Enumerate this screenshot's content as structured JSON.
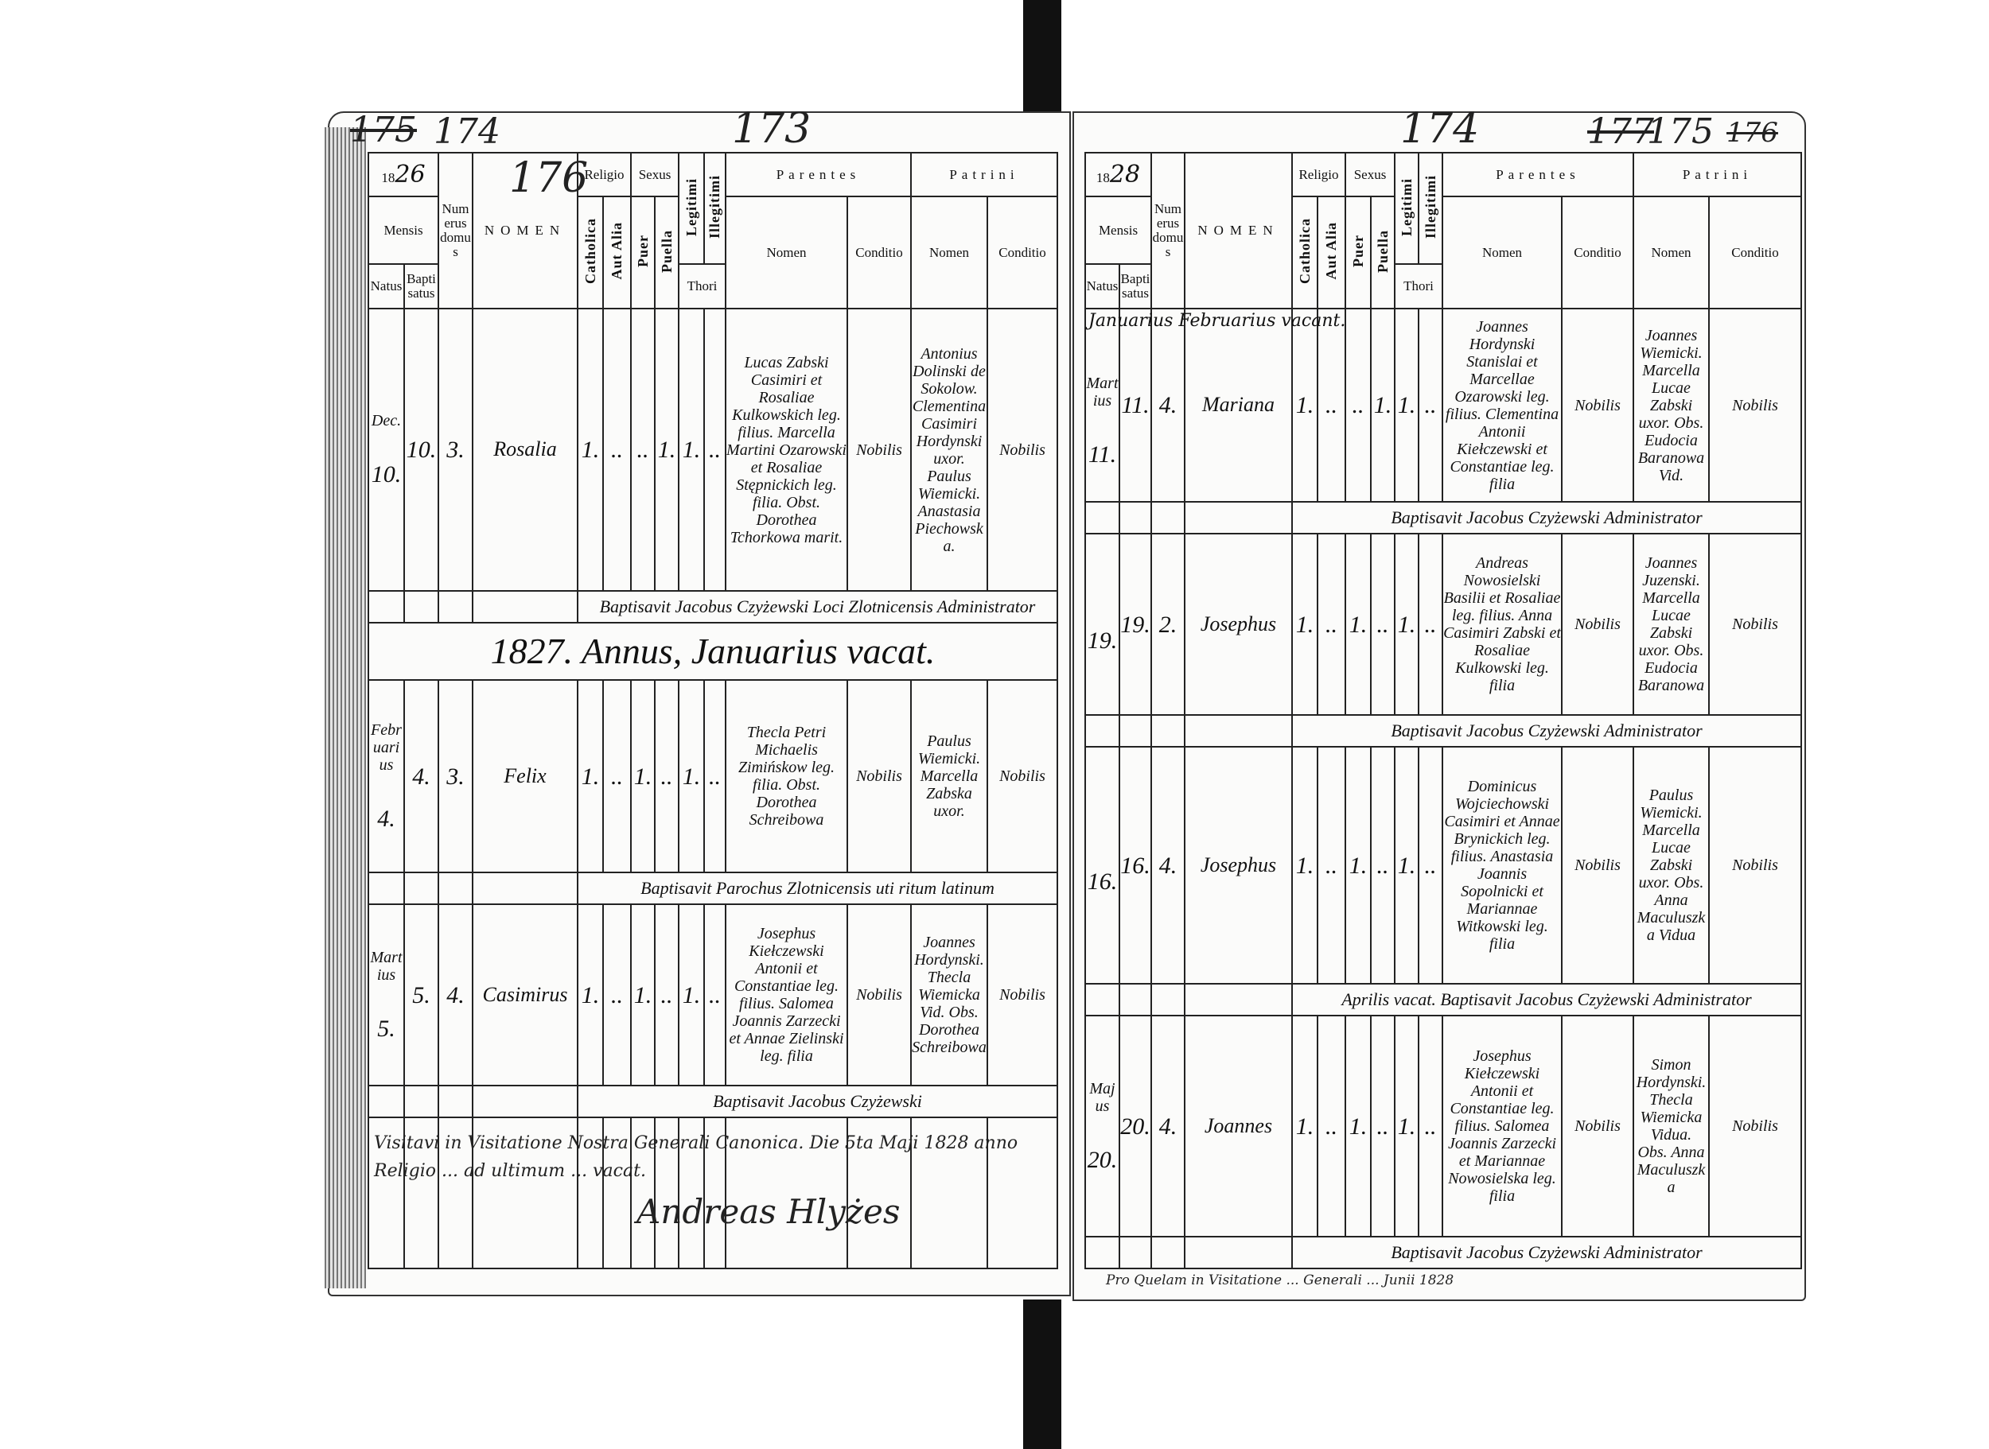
{
  "header": {
    "mensis": "Mensis",
    "natus": "Natus",
    "baptisatus": "Baptisatus",
    "numerus_domus": "Numerus domus",
    "nomen": "NOMEN",
    "religio": "Religio",
    "catholica": "Catholica",
    "aut_alia": "Aut Alia",
    "sexus": "Sexus",
    "puer": "Puer",
    "puella": "Puella",
    "legitimi": "Legitimi",
    "illegitimi": "Illegitimi",
    "thori": "Thori",
    "parentes": "Parentes",
    "patrini": "Patrini",
    "col_nomen": "Nomen",
    "col_conditio": "Conditio"
  },
  "left_page": {
    "page_numbers": [
      "175",
      "174",
      "173",
      "176"
    ],
    "year_prefix": "18",
    "year_suffix": "26",
    "entries": [
      {
        "type": "entry",
        "month": "Dec.",
        "natus": "10.",
        "baptisatus": "10.",
        "domus": "3.",
        "nomen": "Rosalia",
        "catholica": "1.",
        "aut_alia": "..",
        "puer": "..",
        "puella": "1.",
        "legitimi": "1.",
        "illegitimi": "..",
        "parentes_nomen": "Lucas Zabski Casimiri et Rosaliae Kulkowskich leg. filius. Marcella Martini Ozarowski et Rosaliae Stępnickich leg. filia. Obst. Dorothea Tchorkowa marit.",
        "parentes_conditio": "Nobilis",
        "patrini_nomen": "Antonius Dolinski de Sokolow. Clementina Casimiri Hordynski uxor. Paulus Wiemicki. Anastasia Piechowska.",
        "patrini_conditio": "Nobilis",
        "baptizavit": "Baptisavit Jacobus Czyżewski Loci Zlotnicensis Administrator"
      },
      {
        "type": "year",
        "text": "1827. Annus, Januarius vacat."
      },
      {
        "type": "entry",
        "month": "Februarius",
        "natus": "4.",
        "baptisatus": "4.",
        "domus": "3.",
        "nomen": "Felix",
        "catholica": "1.",
        "aut_alia": "..",
        "puer": "1.",
        "puella": "..",
        "legitimi": "1.",
        "illegitimi": "..",
        "parentes_nomen": "Thecla Petri Michaelis Zimińskow leg. filia. Obst. Dorothea Schreibowa",
        "parentes_conditio": "Nobilis",
        "patrini_nomen": "Paulus Wiemicki. Marcella Zabska uxor.",
        "patrini_conditio": "Nobilis",
        "baptizavit": "Baptisavit Parochus Zlotnicensis uti ritum latinum"
      },
      {
        "type": "entry",
        "month": "Martius",
        "natus": "5.",
        "baptisatus": "5.",
        "domus": "4.",
        "nomen": "Casimirus",
        "catholica": "1.",
        "aut_alia": "..",
        "puer": "1.",
        "puella": "..",
        "legitimi": "1.",
        "illegitimi": "..",
        "parentes_nomen": "Josephus Kiełczewski Antonii et Constantiae leg. filius. Salomea Joannis Zarzecki et Annae Zielinski leg. filia",
        "parentes_conditio": "Nobilis",
        "patrini_nomen": "Joannes Hordynski. Thecla Wiemicka Vid. Obs. Dorothea Schreibowa",
        "patrini_conditio": "Nobilis",
        "baptizavit": "Baptisavit Jacobus Czyżewski"
      }
    ],
    "notes": [
      "Visitavi in Visitatione Nostra Generali Canonica. Die 5ta Maji 1828 anno",
      "Religio ... ad ultimum ... vacat."
    ],
    "signature": "Andreas Hlyżes"
  },
  "right_page": {
    "page_numbers": [
      "174",
      "177",
      "175",
      "176"
    ],
    "year_prefix": "18",
    "year_suffix": "28",
    "vacat_note": "Januarius Februarius vacant.",
    "entries": [
      {
        "type": "entry",
        "month": "Martius",
        "natus": "11.",
        "baptisatus": "11.",
        "domus": "4.",
        "nomen": "Mariana",
        "catholica": "1.",
        "aut_alia": "..",
        "puer": "..",
        "puella": "1.",
        "legitimi": "1.",
        "illegitimi": "..",
        "parentes_nomen": "Joannes Hordynski Stanislai et Marcellae Ozarowski leg. filius. Clementina Antonii Kiełczewski et Constantiae leg. filia",
        "parentes_conditio": "Nobilis",
        "patrini_nomen": "Joannes Wiemicki. Marcella Lucae Zabski uxor. Obs. Eudocia Baranowa Vid.",
        "patrini_conditio": "Nobilis",
        "baptizavit": "Baptisavit Jacobus Czyżewski Administrator"
      },
      {
        "type": "entry",
        "month": "",
        "natus": "19.",
        "baptisatus": "19.",
        "domus": "2.",
        "nomen": "Josephus",
        "catholica": "1.",
        "aut_alia": "..",
        "puer": "1.",
        "puella": "..",
        "legitimi": "1.",
        "illegitimi": "..",
        "parentes_nomen": "Andreas Nowosielski Basilii et Rosaliae leg. filius. Anna Casimiri Zabski et Rosaliae Kulkowski leg. filia",
        "parentes_conditio": "Nobilis",
        "patrini_nomen": "Joannes Juzenski. Marcella Lucae Zabski uxor. Obs. Eudocia Baranowa",
        "patrini_conditio": "Nobilis",
        "baptizavit": "Baptisavit Jacobus Czyżewski Administrator"
      },
      {
        "type": "entry",
        "month": "",
        "natus": "16.",
        "baptisatus": "16.",
        "domus": "4.",
        "nomen": "Josephus",
        "catholica": "1.",
        "aut_alia": "..",
        "puer": "1.",
        "puella": "..",
        "legitimi": "1.",
        "illegitimi": "..",
        "parentes_nomen": "Dominicus Wojciechowski Casimiri et Annae Brynickich leg. filius. Anastasia Joannis Sopolnicki et Mariannae Witkowski leg. filia",
        "parentes_conditio": "Nobilis",
        "patrini_nomen": "Paulus Wiemicki. Marcella Lucae Zabski uxor. Obs. Anna Maculuszka Vidua",
        "patrini_conditio": "Nobilis",
        "baptizavit": "Aprilis vacat. Baptisavit Jacobus Czyżewski Administrator"
      },
      {
        "type": "entry",
        "month": "Majus",
        "natus": "20.",
        "baptisatus": "20.",
        "domus": "4.",
        "nomen": "Joannes",
        "catholica": "1.",
        "aut_alia": "..",
        "puer": "1.",
        "puella": "..",
        "legitimi": "1.",
        "illegitimi": "..",
        "parentes_nomen": "Josephus Kiełczewski Antonii et Constantiae leg. filius. Salomea Joannis Zarzecki et Mariannae Nowosielska leg. filia",
        "parentes_conditio": "Nobilis",
        "patrini_nomen": "Simon Hordynski. Thecla Wiemicka Vidua. Obs. Anna Maculuszka",
        "patrini_conditio": "Nobilis",
        "baptizavit": "Baptisavit Jacobus Czyżewski Administrator"
      }
    ],
    "footer": "Pro Quelam in Visitatione ... Generali ... Junii 1828"
  }
}
